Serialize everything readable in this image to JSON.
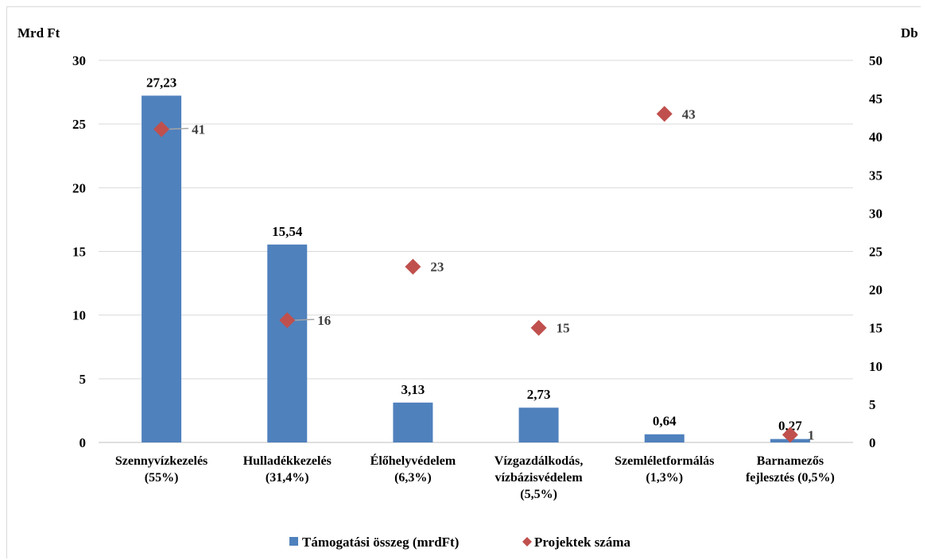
{
  "chart_data": {
    "type": "bar",
    "categories": [
      [
        "Szennyvízkezelés",
        "(55%)"
      ],
      [
        "Hulladékkezelés",
        "(31,4%)"
      ],
      [
        "Élőhelyvédelem",
        "(6,3%)"
      ],
      [
        "Vízgazdálkodás,",
        "vízbázisvédelem",
        "(5,5%)"
      ],
      [
        "Szemléletformálás",
        "(1,3%)"
      ],
      [
        "Barnamezős",
        "fejlesztés (0,5%)"
      ]
    ],
    "y_left": {
      "label": "Mrd Ft",
      "ylim": [
        0,
        30
      ],
      "ticks": [
        0,
        5,
        10,
        15,
        20,
        25,
        30
      ]
    },
    "y_right": {
      "label": "Db",
      "ylim": [
        0,
        50
      ],
      "ticks": [
        0,
        5,
        10,
        15,
        20,
        25,
        30,
        35,
        40,
        45,
        50
      ]
    },
    "series": [
      {
        "name": "Támogatási összeg (mrdFt)",
        "kind": "bar",
        "axis": "left",
        "color": "#4f81bd",
        "values": [
          27.23,
          15.54,
          3.13,
          2.73,
          0.64,
          0.27
        ],
        "labels": [
          "27,23",
          "15,54",
          "3,13",
          "2,73",
          "0,64",
          "0,27"
        ]
      },
      {
        "name": "Projektek száma",
        "kind": "scatter",
        "marker": "diamond",
        "axis": "right",
        "color": "#c0504d",
        "values": [
          41,
          16,
          23,
          15,
          43,
          1
        ],
        "labels": [
          "41",
          "16",
          "23",
          "15",
          "43",
          "1"
        ]
      }
    ],
    "grid": true,
    "legend": "bottom"
  }
}
